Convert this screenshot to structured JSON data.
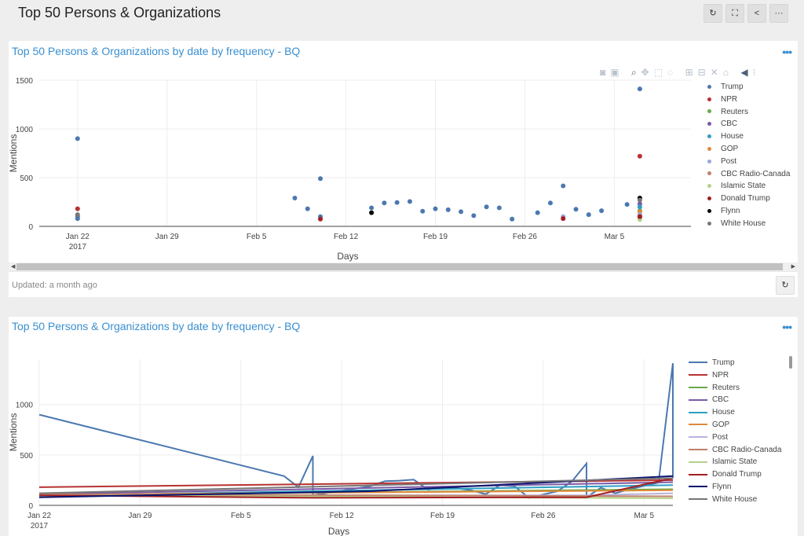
{
  "page": {
    "title": "Top 50 Persons & Organizations",
    "buttons": [
      {
        "name": "refresh-button",
        "icon": "refresh-icon",
        "glyph": "↻"
      },
      {
        "name": "fullscreen-button",
        "icon": "fullscreen-icon",
        "glyph": "⛶"
      },
      {
        "name": "share-button",
        "icon": "share-icon",
        "glyph": "<"
      },
      {
        "name": "more-button",
        "icon": "more-icon",
        "glyph": "···"
      }
    ]
  },
  "panels": [
    {
      "title": "Top 50 Persons & Organizations by date by frequency - BQ",
      "menu_label": "•••",
      "updated": "Updated: a month ago",
      "modebar_icons": [
        "camera-icon",
        "save-icon",
        "zoom-icon",
        "pan-icon",
        "box-select-icon",
        "lasso-icon",
        "zoom-in-icon",
        "zoom-out-icon",
        "autoscale-icon",
        "home-icon",
        "spike-icon",
        "compare-icon"
      ]
    },
    {
      "title": "Top 50 Persons & Organizations by date by frequency - BQ",
      "menu_label": "•••"
    }
  ],
  "chart_data": [
    {
      "type": "scatter",
      "title": "Top 50 Persons & Organizations by date by frequency - BQ",
      "xlabel": "Days",
      "ylabel": "Mentions",
      "x_ticks": [
        "Jan 22\n2017",
        "Jan 29",
        "Feb 5",
        "Feb 12",
        "Feb 19",
        "Feb 26",
        "Mar 5"
      ],
      "ylim": [
        0,
        1500
      ],
      "y_ticks": [
        0,
        500,
        1000,
        1500
      ],
      "xlim": [
        "2017-01-19",
        "2017-03-11"
      ],
      "legend_position": "right",
      "series": [
        {
          "name": "Trump",
          "color": "#4c78b0",
          "points": [
            [
              "2017-01-22",
              900
            ],
            [
              "2017-01-22",
              100
            ],
            [
              "2017-01-22",
              80
            ],
            [
              "2017-02-08",
              290
            ],
            [
              "2017-02-09",
              180
            ],
            [
              "2017-02-10",
              490
            ],
            [
              "2017-02-10",
              100
            ],
            [
              "2017-02-14",
              190
            ],
            [
              "2017-02-15",
              240
            ],
            [
              "2017-02-16",
              245
            ],
            [
              "2017-02-17",
              255
            ],
            [
              "2017-02-18",
              155
            ],
            [
              "2017-02-19",
              180
            ],
            [
              "2017-02-20",
              170
            ],
            [
              "2017-02-21",
              150
            ],
            [
              "2017-02-22",
              110
            ],
            [
              "2017-02-23",
              200
            ],
            [
              "2017-02-24",
              190
            ],
            [
              "2017-02-25",
              75
            ],
            [
              "2017-02-27",
              140
            ],
            [
              "2017-02-28",
              240
            ],
            [
              "2017-03-01",
              415
            ],
            [
              "2017-03-02",
              175
            ],
            [
              "2017-03-03",
              120
            ],
            [
              "2017-03-04",
              160
            ],
            [
              "2017-03-06",
              225
            ],
            [
              "2017-03-07",
              1410
            ]
          ]
        },
        {
          "name": "NPR",
          "color": "#b83232",
          "points": [
            [
              "2017-01-22",
              180
            ],
            [
              "2017-03-07",
              720
            ],
            [
              "2017-03-07",
              110
            ]
          ]
        },
        {
          "name": "Reuters",
          "color": "#69a84a",
          "points": [
            [
              "2017-03-07",
              160
            ]
          ]
        },
        {
          "name": "CBC",
          "color": "#7b5aa6",
          "points": [
            [
              "2017-03-07",
              230
            ]
          ]
        },
        {
          "name": "House",
          "color": "#2e9fc2",
          "points": [
            [
              "2017-03-07",
              200
            ]
          ]
        },
        {
          "name": "GOP",
          "color": "#e08a3c",
          "points": [
            [
              "2017-03-07",
              150
            ]
          ]
        },
        {
          "name": "Post",
          "color": "#9aa6d6",
          "points": [
            [
              "2017-03-01",
              100
            ],
            [
              "2017-03-07",
              120
            ]
          ]
        },
        {
          "name": "CBC Radio-Canada",
          "color": "#c0806a",
          "points": [
            [
              "2017-03-07",
              90
            ]
          ]
        },
        {
          "name": "Islamic State",
          "color": "#b5d18a",
          "points": [
            [
              "2017-03-07",
              70
            ]
          ]
        },
        {
          "name": "Donald Trump",
          "color": "#a41e22",
          "points": [
            [
              "2017-02-10",
              75
            ],
            [
              "2017-03-01",
              80
            ],
            [
              "2017-03-07",
              100
            ]
          ]
        },
        {
          "name": "Flynn",
          "color": "#000000",
          "points": [
            [
              "2017-02-14",
              140
            ],
            [
              "2017-03-07",
              290
            ]
          ]
        },
        {
          "name": "White House",
          "color": "#777777",
          "points": [
            [
              "2017-01-22",
              120
            ],
            [
              "2017-03-07",
              270
            ]
          ]
        }
      ]
    },
    {
      "type": "line",
      "title": "Top 50 Persons & Organizations by date by frequency - BQ",
      "xlabel": "Days",
      "ylabel": "Mentions",
      "x_ticks": [
        "Jan 22\n2017",
        "Jan 29",
        "Feb 5",
        "Feb 12",
        "Feb 19",
        "Feb 26",
        "Mar 5"
      ],
      "ylim": [
        0,
        1450
      ],
      "y_ticks": [
        0,
        500,
        1000
      ],
      "xlim": [
        "2017-01-22",
        "2017-03-07"
      ],
      "legend_position": "right",
      "series": [
        {
          "name": "Trump",
          "color": "#4c78b0",
          "points": [
            [
              "2017-01-22",
              900
            ],
            [
              "2017-02-08",
              290
            ],
            [
              "2017-02-09",
              180
            ],
            [
              "2017-02-10",
              490
            ],
            [
              "2017-02-10",
              100
            ],
            [
              "2017-02-14",
              190
            ],
            [
              "2017-02-15",
              240
            ],
            [
              "2017-02-16",
              245
            ],
            [
              "2017-02-17",
              255
            ],
            [
              "2017-02-18",
              155
            ],
            [
              "2017-02-19",
              180
            ],
            [
              "2017-02-20",
              170
            ],
            [
              "2017-02-21",
              150
            ],
            [
              "2017-02-22",
              110
            ],
            [
              "2017-02-23",
              200
            ],
            [
              "2017-02-24",
              190
            ],
            [
              "2017-02-25",
              75
            ],
            [
              "2017-02-27",
              140
            ],
            [
              "2017-02-28",
              240
            ],
            [
              "2017-03-01",
              415
            ],
            [
              "2017-03-01",
              80
            ],
            [
              "2017-03-02",
              175
            ],
            [
              "2017-03-03",
              120
            ],
            [
              "2017-03-04",
              160
            ],
            [
              "2017-03-06",
              225
            ],
            [
              "2017-03-07",
              1410
            ],
            [
              "2017-03-07",
              270
            ]
          ]
        },
        {
          "name": "NPR",
          "color": "#b83232",
          "points": [
            [
              "2017-01-22",
              180
            ],
            [
              "2017-03-07",
              250
            ]
          ]
        },
        {
          "name": "Reuters",
          "color": "#69a84a",
          "points": [
            [
              "2017-01-22",
              100
            ],
            [
              "2017-03-07",
              160
            ]
          ]
        },
        {
          "name": "CBC",
          "color": "#7b5aa6",
          "points": [
            [
              "2017-01-22",
              110
            ],
            [
              "2017-03-07",
              230
            ]
          ]
        },
        {
          "name": "House",
          "color": "#2e9fc2",
          "points": [
            [
              "2017-01-22",
              95
            ],
            [
              "2017-03-07",
              200
            ]
          ]
        },
        {
          "name": "GOP",
          "color": "#e08a3c",
          "points": [
            [
              "2017-01-22",
              105
            ],
            [
              "2017-03-07",
              150
            ]
          ]
        },
        {
          "name": "Post",
          "color": "#b9b2dc",
          "points": [
            [
              "2017-01-22",
              100
            ],
            [
              "2017-03-01",
              100
            ],
            [
              "2017-03-07",
              120
            ]
          ]
        },
        {
          "name": "CBC Radio-Canada",
          "color": "#c0806a",
          "points": [
            [
              "2017-01-22",
              110
            ],
            [
              "2017-03-07",
              90
            ]
          ]
        },
        {
          "name": "Islamic State",
          "color": "#b5d18a",
          "points": [
            [
              "2017-01-22",
              100
            ],
            [
              "2017-03-07",
              70
            ]
          ]
        },
        {
          "name": "Donald Trump",
          "color": "#a41e22",
          "points": [
            [
              "2017-01-22",
              100
            ],
            [
              "2017-02-10",
              75
            ],
            [
              "2017-03-01",
              80
            ],
            [
              "2017-03-07",
              270
            ]
          ]
        },
        {
          "name": "Flynn",
          "color": "#0a1470",
          "points": [
            [
              "2017-01-22",
              80
            ],
            [
              "2017-02-14",
              140
            ],
            [
              "2017-03-07",
              290
            ]
          ]
        },
        {
          "name": "White House",
          "color": "#777777",
          "points": [
            [
              "2017-01-22",
              120
            ],
            [
              "2017-03-07",
              270
            ]
          ]
        }
      ]
    }
  ]
}
